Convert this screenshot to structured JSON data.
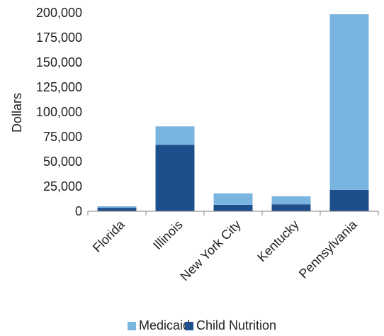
{
  "chart_data": {
    "type": "bar",
    "stacked": true,
    "categories": [
      "Florida",
      "Illinois",
      "New York City",
      "Kentucky",
      "Pennsylvania"
    ],
    "series": [
      {
        "name": "Child Nutrition",
        "color": "#1f4e8c",
        "values": [
          3500,
          67000,
          6500,
          7000,
          21500
        ]
      },
      {
        "name": "Medicaid",
        "color": "#7ab4e0",
        "values": [
          1500,
          18500,
          11500,
          8000,
          177000
        ]
      }
    ],
    "title": "",
    "xlabel": "",
    "ylabel": "Dollars",
    "ylim": [
      0,
      200000
    ],
    "yticks": [
      "0",
      "25,000",
      "50,000",
      "75,000",
      "100,000",
      "125,000",
      "150,000",
      "175,000",
      "200,000"
    ],
    "legend": {
      "position": "bottom",
      "order": [
        "Medicaid",
        "Child Nutrition"
      ]
    },
    "grid": false
  }
}
